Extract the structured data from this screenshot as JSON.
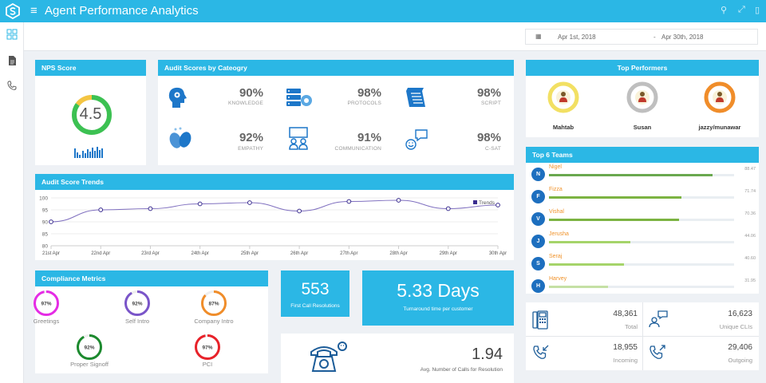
{
  "app": {
    "title": "Agent Performance Analytics",
    "menu_icon": "hamburger-icon"
  },
  "date_range": {
    "from": "Apr 1st, 2018",
    "separator": "-",
    "to": "Apr 30th, 2018"
  },
  "nps": {
    "title": "NPS Score",
    "value": "4.5",
    "ring_fill": 0.85,
    "ring_colors": {
      "main": "#3cc152",
      "accent": "#f4c542"
    }
  },
  "audit": {
    "title": "Audit Scores by Cateogry",
    "items": [
      {
        "value": "90%",
        "label": "KNOWLEDGE",
        "icon": "head-icon"
      },
      {
        "value": "98%",
        "label": "PROTOCOLS",
        "icon": "server-settings-icon"
      },
      {
        "value": "98%",
        "label": "SCRIPT",
        "icon": "scroll-icon"
      },
      {
        "value": "92%",
        "label": "EMPATHY",
        "icon": "fingerprint-hands-icon"
      },
      {
        "value": "91%",
        "label": "COMMUNICATION",
        "icon": "meeting-icon"
      },
      {
        "value": "98%",
        "label": "C-SAT",
        "icon": "smile-chat-icon"
      }
    ]
  },
  "trends": {
    "title": "Audit Score Trends"
  },
  "chart_data": {
    "type": "line",
    "title": "",
    "x": [
      "21st Apr",
      "22nd Apr",
      "23rd Apr",
      "24th Apr",
      "25th Apr",
      "26th Apr",
      "27th Apr",
      "28th Apr",
      "29th Apr",
      "30th Apr"
    ],
    "series": [
      {
        "name": "Trends",
        "values": [
          90,
          95,
          95.5,
          97.5,
          98,
          94.5,
          98.5,
          99,
          95.5,
          97
        ]
      }
    ],
    "ylim": [
      80,
      100
    ],
    "yticks": [
      80,
      85,
      90,
      95,
      100
    ],
    "legend": "top-right",
    "grid": true,
    "color": "#7f6fbf"
  },
  "compliance": {
    "title": "Compliance Metrics",
    "items": [
      {
        "value": "97%",
        "label": "Greetings",
        "color": "#e52ce5"
      },
      {
        "value": "92%",
        "label": "Self Intro",
        "color": "#7a55c9"
      },
      {
        "value": "87%",
        "label": "Company Intro",
        "color": "#f08d2a"
      },
      {
        "value": "92%",
        "label": "Proper Signoff",
        "color": "#1c8a2e"
      },
      {
        "value": "97%",
        "label": "PCI",
        "color": "#e8222a"
      }
    ]
  },
  "fcr": {
    "value": "553",
    "label": "First Call Resolutions"
  },
  "tat": {
    "value": "5.33 Days",
    "label": "Turnaround time per customer"
  },
  "calls": {
    "value": "1.94",
    "label": "Avg. Number of Calls for Resolution",
    "icon": "telephone-icon"
  },
  "top_performers": {
    "title": "Top Performers",
    "people": [
      {
        "name": "Mahtab",
        "ring": "#f2e063"
      },
      {
        "name": "Susan",
        "ring": "#bfbfbf"
      },
      {
        "name": "jazzy/munawar",
        "ring": "#f08d2a"
      }
    ]
  },
  "teams": {
    "title": "Top 6 Teams",
    "rows": [
      {
        "initial": "N",
        "name": "Nigel",
        "score": "88.47",
        "fill": 0.885,
        "color": "#6aa84f"
      },
      {
        "initial": "F",
        "name": "Fizza",
        "score": "71.74",
        "fill": 0.717,
        "color": "#7cb342"
      },
      {
        "initial": "V",
        "name": "Vishal",
        "score": "70.36",
        "fill": 0.704,
        "color": "#7cb342"
      },
      {
        "initial": "J",
        "name": "Jerusha",
        "score": "44.06",
        "fill": 0.441,
        "color": "#a5d46a"
      },
      {
        "initial": "S",
        "name": "Seraj",
        "score": "40.60",
        "fill": 0.406,
        "color": "#a5d46a"
      },
      {
        "initial": "H",
        "name": "Harvey",
        "score": "31.95",
        "fill": 0.32,
        "color": "#c5e0a5"
      }
    ]
  },
  "stats": {
    "total": {
      "value": "48,361",
      "label": "Total"
    },
    "unique": {
      "value": "16,623",
      "label": "Unique CLIs"
    },
    "incoming": {
      "value": "18,955",
      "label": "Incoming"
    },
    "outgoing": {
      "value": "29,406",
      "label": "Outgoing"
    }
  }
}
